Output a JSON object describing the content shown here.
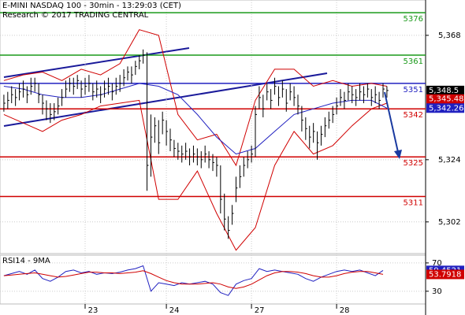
{
  "chart_data": [
    {
      "type": "ohlc",
      "title": "E-MINI NASDAQ 100 - 30min - 13:29:03 (CET)",
      "subtitle": "Research © 2017 TRADING CENTRAL",
      "xlim": [
        -1,
        109
      ],
      "xticks": [
        {
          "value": 21,
          "label": "23"
        },
        {
          "value": 42,
          "label": "24"
        },
        {
          "value": 64,
          "label": "27"
        },
        {
          "value": 86,
          "label": "28"
        }
      ],
      "ylim": [
        5290.8,
        5380.5
      ],
      "yticks": [
        {
          "value": 5368,
          "label": "5,368"
        },
        {
          "value": 5324,
          "label": "5,324"
        },
        {
          "value": 5302,
          "label": "5,302"
        }
      ],
      "grid": true,
      "color": "#000000",
      "high": [
        5347,
        5348,
        5350,
        5349,
        5351,
        5352,
        5350,
        5353,
        5353,
        5351,
        5347,
        5345,
        5344,
        5344,
        5346,
        5349,
        5352,
        5353,
        5353,
        5354,
        5352,
        5353,
        5354,
        5351,
        5352,
        5350,
        5352,
        5353,
        5351,
        5353,
        5354,
        5356,
        5357,
        5357,
        5359,
        5361,
        5363,
        5362,
        5340,
        5339,
        5338,
        5341,
        5338,
        5335,
        5331,
        5330,
        5329,
        5330,
        5328,
        5329,
        5328,
        5327,
        5329,
        5327,
        5326,
        5325,
        5322,
        5312,
        5304,
        5308,
        5318,
        5322,
        5325,
        5327,
        5329,
        5343,
        5350,
        5347,
        5351,
        5349,
        5353,
        5350,
        5352,
        5349,
        5351,
        5350,
        5347,
        5343,
        5339,
        5336,
        5337,
        5334,
        5336,
        5339,
        5341,
        5343,
        5346,
        5349,
        5348,
        5351,
        5350,
        5349,
        5351,
        5350,
        5351,
        5349,
        5350,
        5348,
        5351,
        5350
      ],
      "low": [
        5341,
        5342,
        5344,
        5343,
        5345,
        5346,
        5344,
        5347,
        5348,
        5344,
        5340,
        5338,
        5337,
        5338,
        5340,
        5343,
        5346,
        5348,
        5347,
        5349,
        5346,
        5347,
        5348,
        5345,
        5346,
        5344,
        5346,
        5347,
        5345,
        5347,
        5348,
        5350,
        5352,
        5351,
        5354,
        5356,
        5358,
        5313,
        5318,
        5330,
        5326,
        5333,
        5329,
        5327,
        5325,
        5324,
        5323,
        5324,
        5322,
        5323,
        5322,
        5321,
        5323,
        5321,
        5320,
        5318,
        5305,
        5299,
        5296,
        5301,
        5309,
        5314,
        5318,
        5321,
        5323,
        5325,
        5342,
        5339,
        5345,
        5342,
        5347,
        5343,
        5346,
        5341,
        5345,
        5343,
        5340,
        5334,
        5331,
        5328,
        5330,
        5324,
        5329,
        5332,
        5335,
        5337,
        5340,
        5343,
        5342,
        5345,
        5344,
        5343,
        5345,
        5344,
        5346,
        5343,
        5344,
        5342,
        5346,
        5346
      ],
      "close": [
        5344,
        5345,
        5347,
        5346,
        5348,
        5349,
        5347,
        5350,
        5351,
        5347,
        5344,
        5342,
        5340,
        5341,
        5343,
        5346,
        5349,
        5351,
        5350,
        5352,
        5349,
        5350,
        5351,
        5348,
        5349,
        5347,
        5349,
        5350,
        5348,
        5350,
        5351,
        5353,
        5355,
        5354,
        5357,
        5359,
        5361,
        5322,
        5332,
        5336,
        5330,
        5338,
        5334,
        5331,
        5328,
        5327,
        5326,
        5327,
        5325,
        5326,
        5325,
        5324,
        5326,
        5324,
        5323,
        5322,
        5310,
        5303,
        5299,
        5305,
        5314,
        5318,
        5322,
        5324,
        5326,
        5340,
        5346,
        5342,
        5348,
        5345,
        5350,
        5346,
        5349,
        5344,
        5348,
        5346,
        5343,
        5338,
        5335,
        5332,
        5334,
        5330,
        5333,
        5336,
        5338,
        5340,
        5343,
        5346,
        5345,
        5348,
        5347,
        5346,
        5348,
        5347,
        5349,
        5346,
        5347,
        5345,
        5349,
        5348.5
      ],
      "overlay_x": [
        0,
        5,
        10,
        15,
        20,
        25,
        30,
        35,
        40,
        45,
        50,
        55,
        60,
        65,
        70,
        75,
        80,
        85,
        90,
        95,
        99
      ],
      "overlays": [
        {
          "color": "#d00000",
          "values": [
            5352,
            5354,
            5355,
            5352,
            5356,
            5354,
            5358,
            5370,
            5368,
            5340,
            5331,
            5333,
            5322,
            5345,
            5356,
            5356,
            5350,
            5352,
            5350,
            5351,
            5350
          ]
        },
        {
          "color": "#d00000",
          "values": [
            5340,
            5337,
            5334,
            5338,
            5340,
            5343,
            5344,
            5345,
            5310,
            5310,
            5320,
            5305,
            5292,
            5300,
            5322,
            5334,
            5326,
            5329,
            5336,
            5342,
            5344
          ]
        },
        {
          "color": "#2020c0",
          "values": [
            5350,
            5349,
            5347,
            5346,
            5346,
            5347,
            5349,
            5351,
            5350,
            5347,
            5340,
            5332,
            5326,
            5328,
            5334,
            5340,
            5342,
            5344,
            5345,
            5345,
            5342.26
          ]
        }
      ],
      "levels": [
        {
          "value": 5376,
          "color": "#1a9a1a"
        },
        {
          "value": 5361,
          "color": "#1a9a1a"
        },
        {
          "value": 5351,
          "color": "#2020c0"
        },
        {
          "value": 5342,
          "color": "#d00000"
        },
        {
          "value": 5325,
          "color": "#d00000"
        },
        {
          "value": 5311,
          "color": "#d00000"
        }
      ],
      "price_tags": [
        {
          "value": 5348.5,
          "label": "5,348.5",
          "color": "#000000"
        },
        {
          "value": 5345.48,
          "label": "5,345.48",
          "color": "#d00000"
        },
        {
          "value": 5342.26,
          "label": "5,342.26",
          "color": "#2020c0"
        }
      ]
    },
    {
      "type": "line",
      "title": "RSI14 - 9MA",
      "xlim": [
        -1,
        109
      ],
      "ylim": [
        12,
        81
      ],
      "yticks": [
        70,
        30
      ],
      "x": [
        0,
        2,
        4,
        6,
        8,
        10,
        12,
        14,
        16,
        18,
        20,
        22,
        24,
        26,
        28,
        30,
        32,
        34,
        36,
        38,
        40,
        42,
        44,
        46,
        48,
        50,
        52,
        54,
        56,
        58,
        60,
        62,
        64,
        66,
        68,
        70,
        72,
        74,
        76,
        78,
        80,
        82,
        84,
        86,
        88,
        90,
        92,
        94,
        96,
        98
      ],
      "series": [
        {
          "color": "#2020c0",
          "values": [
            52,
            55,
            58,
            54,
            60,
            48,
            44,
            50,
            58,
            60,
            56,
            58,
            54,
            56,
            55,
            57,
            60,
            62,
            66,
            30,
            42,
            40,
            38,
            42,
            40,
            42,
            44,
            40,
            28,
            24,
            40,
            45,
            48,
            62,
            58,
            60,
            58,
            56,
            54,
            48,
            44,
            50,
            54,
            58,
            60,
            58,
            60,
            56,
            52,
            59.4521
          ]
        },
        {
          "color": "#d00000",
          "values": [
            52,
            53,
            54,
            55,
            56,
            54,
            52,
            50,
            51,
            53,
            55,
            57,
            57,
            56,
            56,
            55,
            56,
            57,
            59,
            55,
            50,
            45,
            42,
            40,
            40,
            40,
            41,
            42,
            40,
            36,
            34,
            36,
            40,
            46,
            52,
            56,
            58,
            58,
            57,
            55,
            52,
            50,
            50,
            52,
            55,
            57,
            58,
            58,
            56,
            53.7918
          ]
        }
      ]
    }
  ]
}
